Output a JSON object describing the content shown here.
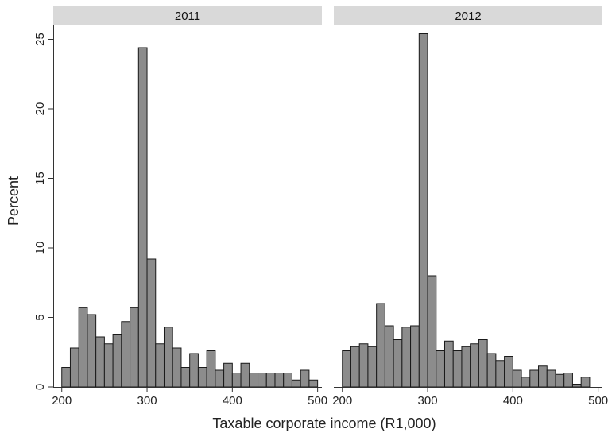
{
  "chart_data": {
    "type": "bar",
    "ylabel": "Percent",
    "xlabel": "Taxable corporate income (R1,000)",
    "ylim": [
      0,
      26
    ],
    "y_ticks": [
      0,
      5,
      10,
      15,
      20,
      25
    ],
    "xlim": [
      190,
      505
    ],
    "x_ticks": [
      200,
      300,
      400,
      500
    ],
    "bin_width": 10,
    "grid": false,
    "bar_color": "#8c8c8c",
    "panels": [
      {
        "title": "2011",
        "bin_starts": [
          200,
          210,
          220,
          230,
          240,
          250,
          260,
          270,
          280,
          290,
          300,
          310,
          320,
          330,
          340,
          350,
          360,
          370,
          380,
          390,
          400,
          410,
          420,
          430,
          440,
          450,
          460,
          470,
          480,
          490
        ],
        "values": [
          1.4,
          2.8,
          5.7,
          5.2,
          3.6,
          3.1,
          3.8,
          4.7,
          5.7,
          24.4,
          9.2,
          3.1,
          4.3,
          2.8,
          1.4,
          2.4,
          1.4,
          2.6,
          1.2,
          1.7,
          1.0,
          1.7,
          1.0,
          1.0,
          1.0,
          1.0,
          1.0,
          0.5,
          1.2,
          0.5
        ]
      },
      {
        "title": "2012",
        "bin_starts": [
          200,
          210,
          220,
          230,
          240,
          250,
          260,
          270,
          280,
          290,
          300,
          310,
          320,
          330,
          340,
          350,
          360,
          370,
          380,
          390,
          400,
          410,
          420,
          430,
          440,
          450,
          460,
          470,
          480
        ],
        "values": [
          2.6,
          2.9,
          3.1,
          2.9,
          6.0,
          4.4,
          3.4,
          4.3,
          4.4,
          25.4,
          8.0,
          2.6,
          3.3,
          2.6,
          2.9,
          3.1,
          3.4,
          2.4,
          1.9,
          2.2,
          1.2,
          0.7,
          1.2,
          1.5,
          1.2,
          0.9,
          1.0,
          0.2,
          0.7
        ]
      }
    ]
  }
}
